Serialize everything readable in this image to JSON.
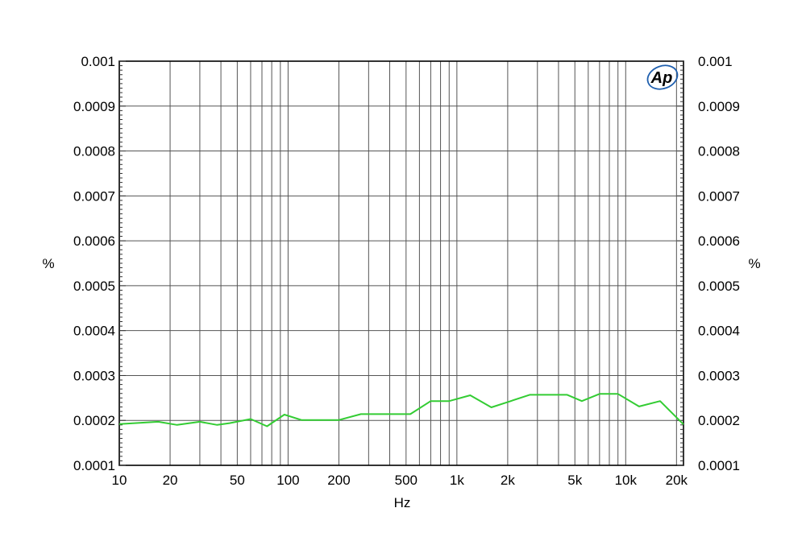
{
  "chart_data": {
    "type": "line",
    "title": "",
    "xlabel": "Hz",
    "ylabel_left": "%",
    "ylabel_right": "%",
    "x_scale": "log",
    "xlim": [
      10,
      22000
    ],
    "ylim": [
      0.0001,
      0.001
    ],
    "grid": true,
    "x_ticks": [
      {
        "value": 10,
        "label": "10"
      },
      {
        "value": 20,
        "label": "20"
      },
      {
        "value": 50,
        "label": "50"
      },
      {
        "value": 100,
        "label": "100"
      },
      {
        "value": 200,
        "label": "200"
      },
      {
        "value": 500,
        "label": "500"
      },
      {
        "value": 1000,
        "label": "1k"
      },
      {
        "value": 2000,
        "label": "2k"
      },
      {
        "value": 5000,
        "label": "5k"
      },
      {
        "value": 10000,
        "label": "10k"
      },
      {
        "value": 20000,
        "label": "20k"
      }
    ],
    "y_ticks": [
      {
        "value": 0.0001,
        "label": "0.0001"
      },
      {
        "value": 0.0002,
        "label": "0.0002"
      },
      {
        "value": 0.0003,
        "label": "0.0003"
      },
      {
        "value": 0.0004,
        "label": "0.0004"
      },
      {
        "value": 0.0005,
        "label": "0.0005"
      },
      {
        "value": 0.0006,
        "label": "0.0006"
      },
      {
        "value": 0.0007,
        "label": "0.0007"
      },
      {
        "value": 0.0008,
        "label": "0.0008"
      },
      {
        "value": 0.0009,
        "label": "0.0009"
      },
      {
        "value": 0.001,
        "label": "0.001"
      }
    ],
    "series": [
      {
        "color": "#33cc33",
        "x": [
          10,
          17,
          22,
          30,
          38,
          45,
          60,
          75,
          95,
          120,
          150,
          200,
          270,
          350,
          530,
          700,
          900,
          1200,
          1600,
          2000,
          2700,
          3500,
          4500,
          5500,
          7000,
          9000,
          12000,
          16000,
          22000
        ],
        "y": [
          0.000192,
          0.000197,
          0.00019,
          0.000197,
          0.00019,
          0.000194,
          0.000203,
          0.000187,
          0.000213,
          0.000201,
          0.000201,
          0.000201,
          0.000214,
          0.000214,
          0.000214,
          0.000243,
          0.000243,
          0.000256,
          0.000229,
          0.000241,
          0.000257,
          0.000257,
          0.000257,
          0.000243,
          0.000259,
          0.000259,
          0.000231,
          0.000243,
          0.000191
        ]
      }
    ]
  },
  "logo": {
    "text": "Ap",
    "color": "#1f5fae"
  }
}
